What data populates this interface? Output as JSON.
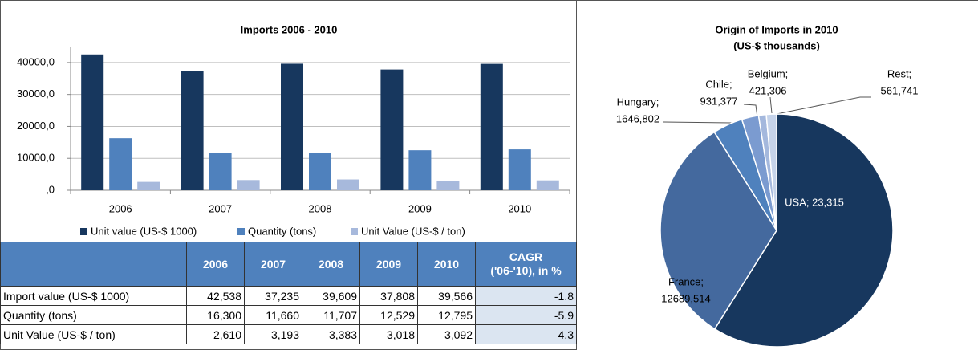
{
  "chart_data": [
    {
      "type": "bar",
      "title": "Imports 2006 - 2010",
      "categories": [
        "2006",
        "2007",
        "2008",
        "2009",
        "2010"
      ],
      "series": [
        {
          "name": "Unit value (US-$ 1000)",
          "color": "#17375e",
          "values": [
            42538,
            37235,
            39609,
            37808,
            39566
          ]
        },
        {
          "name": "Quantity (tons)",
          "color": "#4f81bd",
          "values": [
            16300,
            11660,
            11707,
            12529,
            12795
          ]
        },
        {
          "name": "Unit Value (US-$ / ton)",
          "color": "#a7b9dc",
          "values": [
            2610,
            3193,
            3383,
            3018,
            3092
          ]
        }
      ],
      "ylim": [
        0,
        45000
      ],
      "yticks": [
        {
          "value": 0,
          "label": ",0"
        },
        {
          "value": 10000,
          "label": "10000,0"
        },
        {
          "value": 20000,
          "label": "20000,0"
        },
        {
          "value": 30000,
          "label": "30000,0"
        },
        {
          "value": 40000,
          "label": "40000,0"
        }
      ],
      "grid": true,
      "legend": "bottom"
    },
    {
      "type": "pie",
      "title": "Origin of Imports  in 2010",
      "subtitle": "(US-$ thousands)",
      "values": [
        23315,
        12689.514,
        1646.802,
        931.377,
        421.306,
        561.741
      ],
      "value_labels": [
        [
          "USA; 23,315"
        ],
        [
          "France;",
          "12689,514"
        ],
        [
          "Hungary;",
          "1646,802"
        ],
        [
          "Chile;",
          "931,377"
        ],
        [
          "Belgium;",
          "421,306"
        ],
        [
          "Rest;",
          "561,741"
        ]
      ],
      "colors": [
        "#17375e",
        "#44699e",
        "#4f81bd",
        "#7b9bd0",
        "#a4b8dd",
        "#c5d3ea"
      ]
    }
  ],
  "table": {
    "header": [
      "2006",
      "2007",
      "2008",
      "2009",
      "2010",
      [
        "CAGR",
        "('06-'10), in %"
      ]
    ],
    "rows": [
      [
        "Import value (US-$ 1000)",
        "42,538",
        "37,235",
        "39,609",
        "37,808",
        "39,566",
        "-1.8"
      ],
      [
        "Quantity (tons)",
        "16,300",
        "11,660",
        "11,707",
        "12,529",
        "12,795",
        "-5.9"
      ],
      [
        "Unit Value (US-$ / ton)",
        "2,610",
        "3,193",
        "3,383",
        "3,018",
        "3,092",
        "4.3"
      ]
    ]
  }
}
